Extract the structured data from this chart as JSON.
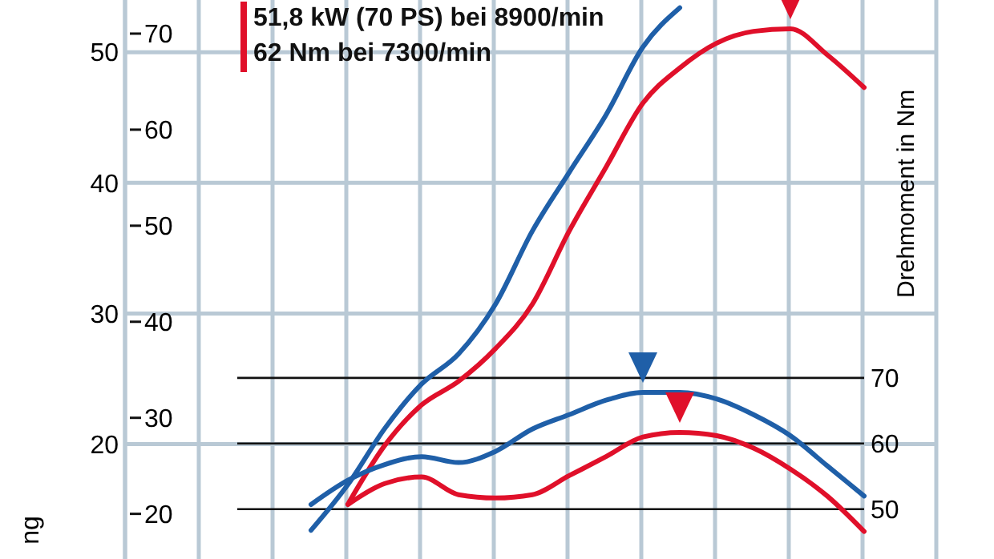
{
  "chart_data": {
    "type": "line",
    "ylabel": "ng",
    "y3label": "Drehmoment in Nm",
    "categories": [
      null,
      null,
      null,
      null,
      null,
      null,
      null,
      null,
      null,
      null,
      null,
      null,
      null,
      null,
      null,
      null,
      null,
      null,
      null,
      null,
      null,
      null,
      null
    ],
    "ylim": [
      11.2,
      54
    ],
    "yticks": [
      20,
      30,
      40,
      50
    ],
    "y2lim": [
      15.3,
      73.5
    ],
    "y2ticks": [
      20,
      30,
      40,
      50,
      60,
      70
    ],
    "y3lim": [
      42.4,
      127.6
    ],
    "y3ticks": [
      50,
      60,
      70
    ],
    "grid": true,
    "legend": "top left",
    "line_style": "solid",
    "series": [
      {
        "color": "#1f5fa8",
        "values": [
          null,
          null,
          null,
          null,
          null,
          13.4,
          16.9,
          21.2,
          24.6,
          26.9,
          30.7,
          36.3,
          40.8,
          45.2,
          50.4,
          53.4,
          null,
          null,
          null,
          null,
          null,
          null,
          null
        ]
      },
      {
        "name": "51,8 kW (70 PS) bei 8900/min",
        "color": "#e0102a",
        "values": [
          null,
          null,
          null,
          null,
          null,
          null,
          15.4,
          19.9,
          23.0,
          24.8,
          27.3,
          30.7,
          36.3,
          41.2,
          46.1,
          48.8,
          50.7,
          51.6,
          51.8,
          49.8,
          47.3,
          null,
          null
        ]
      },
      {
        "color": "#1f5fa8",
        "axis": "y3",
        "values": [
          null,
          null,
          null,
          null,
          null,
          50.7,
          54.4,
          56.8,
          58.0,
          57.1,
          58.8,
          62.2,
          64.4,
          66.6,
          67.8,
          67.8,
          66.8,
          64.4,
          61.2,
          56.6,
          52.0,
          null,
          null
        ]
      },
      {
        "name": "62 Nm bei 7300/min",
        "color": "#e0102a",
        "axis": "y3",
        "values": [
          null,
          null,
          null,
          null,
          null,
          null,
          50.7,
          53.9,
          54.9,
          52.2,
          51.7,
          52.2,
          55.1,
          58.0,
          61.0,
          61.7,
          61.2,
          59.3,
          56.1,
          52.0,
          46.6,
          null,
          null
        ]
      }
    ]
  }
}
